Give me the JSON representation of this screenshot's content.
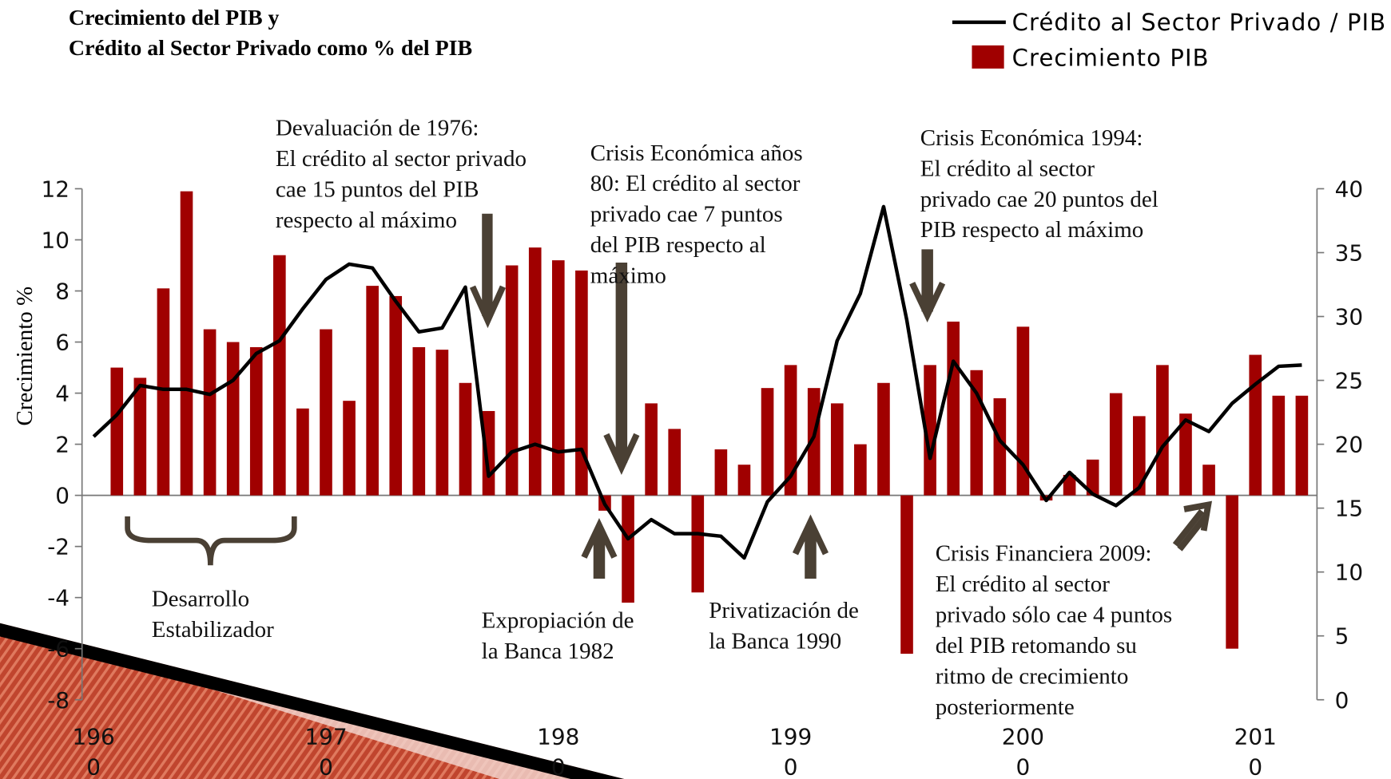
{
  "chart_data": {
    "type": "bar_line",
    "title_lines": [
      "Crecimiento del PIB y",
      "Crédito al Sector Privado como % del PIB"
    ],
    "y_label": "Crecimiento %",
    "x": [
      1960,
      1961,
      1962,
      1963,
      1964,
      1965,
      1966,
      1967,
      1968,
      1969,
      1970,
      1971,
      1972,
      1973,
      1974,
      1975,
      1976,
      1977,
      1978,
      1979,
      1980,
      1981,
      1982,
      1983,
      1984,
      1985,
      1986,
      1987,
      1988,
      1989,
      1990,
      1991,
      1992,
      1993,
      1994,
      1995,
      1996,
      1997,
      1998,
      1999,
      2000,
      2001,
      2002,
      2003,
      2004,
      2005,
      2006,
      2007,
      2008,
      2009,
      2010,
      2011,
      2012
    ],
    "series": [
      {
        "name": "Crecimiento PIB",
        "color": "#a00000",
        "values": [
          null,
          5.0,
          4.6,
          8.1,
          11.9,
          6.5,
          6.0,
          5.8,
          9.4,
          3.4,
          6.5,
          3.7,
          8.2,
          7.8,
          5.8,
          5.7,
          4.4,
          3.3,
          9.0,
          9.7,
          9.2,
          8.8,
          -0.6,
          -4.2,
          3.6,
          2.6,
          -3.8,
          1.8,
          1.2,
          4.2,
          5.1,
          4.2,
          3.6,
          2.0,
          4.4,
          -6.2,
          5.1,
          6.8,
          4.9,
          3.8,
          6.6,
          -0.2,
          0.8,
          1.4,
          4.0,
          3.1,
          5.1,
          3.2,
          1.2,
          -6.0,
          5.5,
          3.9,
          3.9
        ]
      },
      {
        "name": "Crédito al Sector Privado / PIB",
        "color": "#000000",
        "axis": "y2",
        "values": [
          20.6,
          22.3,
          24.6,
          24.3,
          24.3,
          23.9,
          25.0,
          27.1,
          28.1,
          30.6,
          32.9,
          34.1,
          33.8,
          31.2,
          28.8,
          29.1,
          32.3,
          17.5,
          19.4,
          20.0,
          19.4,
          19.6,
          15.3,
          12.6,
          14.1,
          13.0,
          13.0,
          12.8,
          11.1,
          15.5,
          17.5,
          20.6,
          28.1,
          31.8,
          38.6,
          29.7,
          18.9,
          26.5,
          24.0,
          20.3,
          18.4,
          15.6,
          17.8,
          16.1,
          15.2,
          16.6,
          19.8,
          21.9,
          21.0,
          23.2,
          24.7,
          26.1,
          26.2
        ]
      }
    ],
    "xlim": [
      1960,
      2012
    ],
    "xticks": [
      1960,
      1970,
      1980,
      1990,
      2000,
      2010
    ],
    "ylim": [
      -8,
      12
    ],
    "yticks": [
      -8,
      -6,
      -4,
      -2,
      0,
      2,
      4,
      6,
      8,
      10,
      12
    ],
    "y2lim": [
      0,
      40
    ],
    "y2ticks": [
      0,
      5,
      10,
      15,
      20,
      25,
      30,
      35,
      40
    ],
    "legend": "top-right",
    "annotations": [
      {
        "lines": [
          "Devaluación de 1976:",
          "El crédito al sector privado",
          "cae 15 puntos del PIB",
          "respecto al máximo"
        ]
      },
      {
        "lines": [
          "Crisis Económica años",
          "80:  El crédito al sector",
          "privado cae 7 puntos",
          "del PIB respecto al",
          "máximo"
        ]
      },
      {
        "lines": [
          "Crisis Económica 1994:",
          "El crédito al sector",
          "privado cae 20 puntos del",
          "PIB respecto al máximo"
        ]
      },
      {
        "lines": [
          "Crisis Financiera 2009:",
          "El crédito al sector",
          "privado sólo cae 4 puntos",
          "del PIB retomando su",
          "ritmo de crecimiento",
          "posteriormente"
        ]
      },
      {
        "lines": [
          "Desarrollo",
          "Estabilizador"
        ]
      },
      {
        "lines": [
          "Expropiación de",
          "la Banca 1982"
        ]
      },
      {
        "lines": [
          "Privatización de",
          "la Banca 1990"
        ]
      }
    ]
  }
}
